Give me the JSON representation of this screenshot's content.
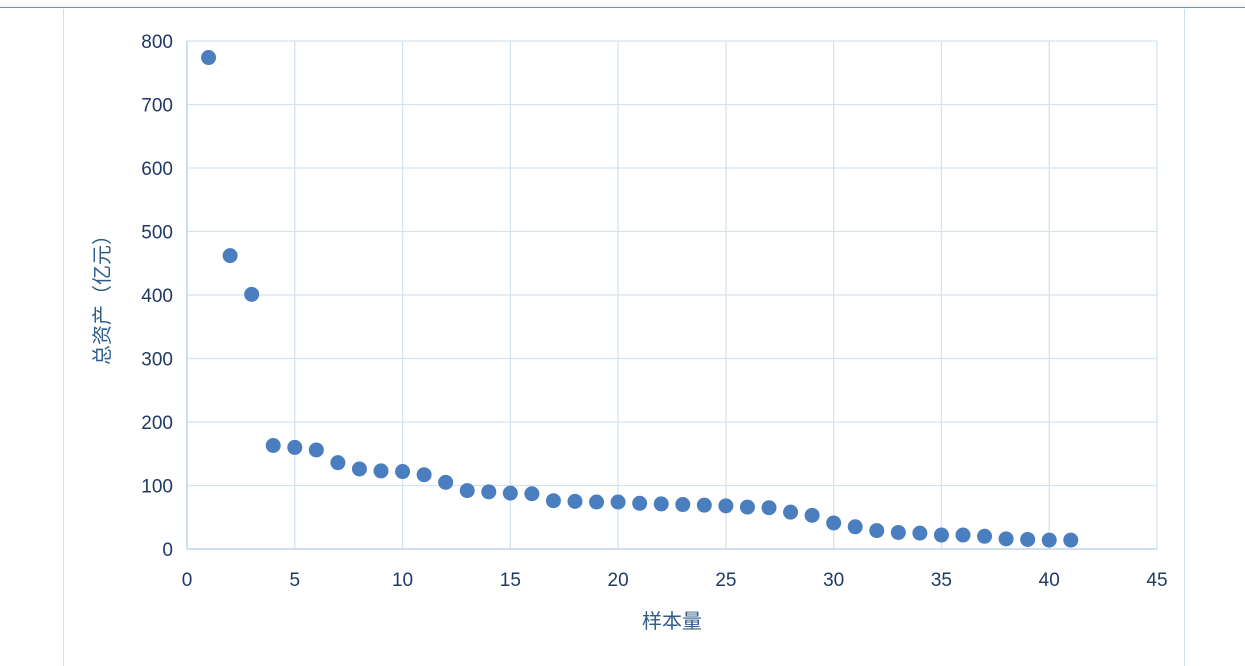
{
  "chart_data": {
    "type": "scatter",
    "title": "",
    "xlabel": "样本量",
    "ylabel": "总资产（亿元）",
    "xlim": [
      0,
      45
    ],
    "ylim": [
      0,
      800
    ],
    "xticks": [
      "0",
      "5",
      "10",
      "15",
      "20",
      "25",
      "30",
      "35",
      "40",
      "45"
    ],
    "yticks": [
      "0",
      "100",
      "200",
      "300",
      "400",
      "500",
      "600",
      "700",
      "800"
    ],
    "grid": true,
    "legend": "none",
    "point_color": "#4a7ebf",
    "series": [
      {
        "x": [
          1,
          2,
          3,
          4,
          5,
          6,
          7,
          8,
          9,
          10,
          11,
          12,
          13,
          14,
          15,
          16,
          17,
          18,
          19,
          20,
          21,
          22,
          23,
          24,
          25,
          26,
          27,
          28,
          29,
          30,
          31,
          32,
          33,
          34,
          35,
          36,
          37,
          38,
          39,
          40,
          41
        ],
        "y": [
          774,
          462,
          401,
          163,
          160,
          156,
          136,
          126,
          123,
          122,
          117,
          105,
          92,
          90,
          88,
          87,
          76,
          75,
          74,
          74,
          72,
          71,
          70,
          69,
          68,
          66,
          65,
          58,
          53,
          41,
          35,
          29,
          26,
          25,
          22,
          22,
          20,
          16,
          15,
          14,
          14
        ]
      }
    ]
  }
}
